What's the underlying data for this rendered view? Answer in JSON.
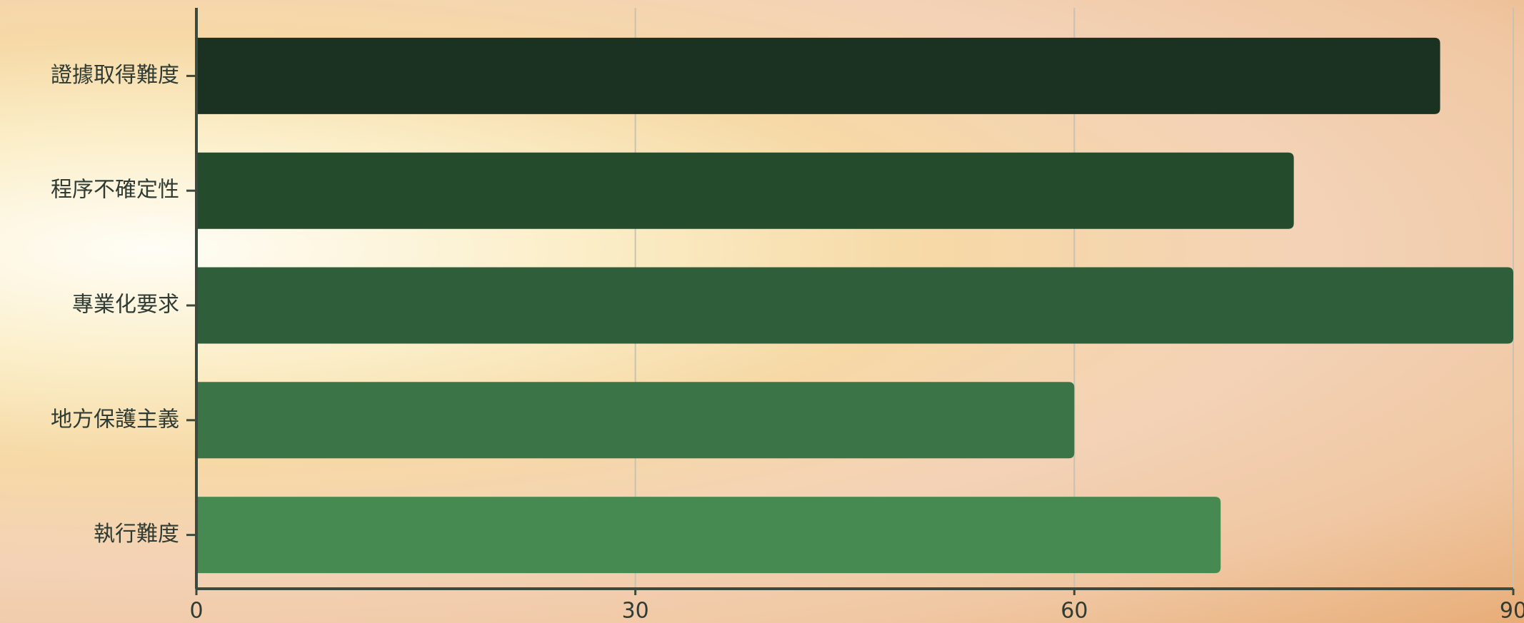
{
  "chart_data": {
    "type": "bar",
    "orientation": "horizontal",
    "categories": [
      "證據取得難度",
      "程序不確定性",
      "專業化要求",
      "地方保護主義",
      "執行難度"
    ],
    "values": [
      85,
      75,
      90,
      60,
      70
    ],
    "colors": [
      "#1b3121",
      "#254b2d",
      "#2f5e3a",
      "#3b7446",
      "#468a51"
    ],
    "xlim": [
      0,
      90
    ],
    "xticks": [
      0,
      30,
      60,
      90
    ],
    "grid": true
  }
}
